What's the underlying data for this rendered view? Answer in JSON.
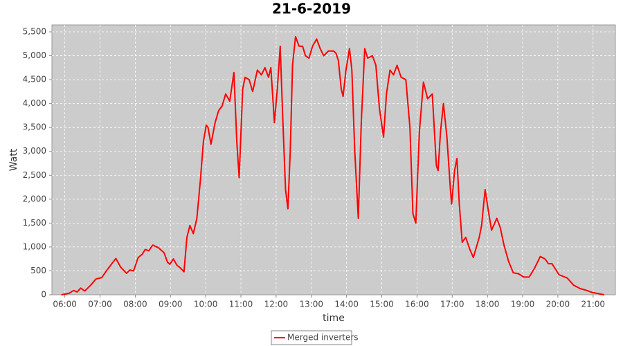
{
  "chart_data": {
    "type": "line",
    "title": "21-6-2019",
    "x_label": "time",
    "y_label": "Watt",
    "x": [
      "05:54",
      "06:07",
      "06:15",
      "06:21",
      "06:27",
      "06:34",
      "06:44",
      "06:53",
      "07:03",
      "07:12",
      "07:20",
      "07:27",
      "07:35",
      "07:45",
      "07:51",
      "07:57",
      "08:05",
      "08:12",
      "08:17",
      "08:23",
      "08:30",
      "08:40",
      "08:49",
      "08:55",
      "08:59",
      "09:05",
      "09:11",
      "09:17",
      "09:23",
      "09:28",
      "09:33",
      "09:39",
      "09:45",
      "09:51",
      "09:56",
      "10:01",
      "10:04",
      "10:09",
      "10:16",
      "10:22",
      "10:28",
      "10:34",
      "10:41",
      "10:48",
      "10:53",
      "10:57",
      "11:03",
      "11:07",
      "11:14",
      "11:20",
      "11:28",
      "11:35",
      "11:41",
      "11:47",
      "11:51",
      "11:57",
      "12:02",
      "12:07",
      "12:11",
      "12:16",
      "12:20",
      "12:24",
      "12:28",
      "12:33",
      "12:39",
      "12:45",
      "12:50",
      "12:56",
      "13:02",
      "13:09",
      "13:15",
      "13:21",
      "13:29",
      "13:38",
      "13:42",
      "13:46",
      "13:51",
      "13:54",
      "13:59",
      "14:05",
      "14:09",
      "14:14",
      "14:20",
      "14:25",
      "14:31",
      "14:36",
      "14:44",
      "14:50",
      "14:56",
      "15:03",
      "15:08",
      "15:14",
      "15:20",
      "15:26",
      "15:33",
      "15:41",
      "15:48",
      "15:53",
      "15:58",
      "16:04",
      "16:11",
      "16:18",
      "16:26",
      "16:33",
      "16:36",
      "16:40",
      "16:45",
      "16:51",
      "16:57",
      "16:59",
      "17:04",
      "17:08",
      "17:12",
      "17:17",
      "17:23",
      "17:30",
      "17:36",
      "17:46",
      "17:50",
      "17:56",
      "18:01",
      "18:07",
      "18:16",
      "18:22",
      "18:28",
      "18:36",
      "18:44",
      "18:53",
      "19:02",
      "19:11",
      "19:20",
      "19:30",
      "19:38",
      "19:44",
      "19:50",
      "20:02",
      "20:16",
      "20:27",
      "20:38",
      "20:47",
      "20:58",
      "21:11",
      "21:19"
    ],
    "series": [
      {
        "name": "Merged inverters",
        "color": "#ff0000",
        "values": [
          0,
          30,
          90,
          60,
          140,
          80,
          200,
          330,
          360,
          520,
          650,
          760,
          580,
          450,
          520,
          500,
          780,
          850,
          950,
          920,
          1040,
          980,
          880,
          680,
          640,
          750,
          620,
          560,
          480,
          1200,
          1450,
          1280,
          1600,
          2400,
          3200,
          3550,
          3500,
          3150,
          3600,
          3850,
          3950,
          4200,
          4050,
          4650,
          3200,
          2450,
          4300,
          4550,
          4500,
          4250,
          4700,
          4600,
          4750,
          4550,
          4750,
          3600,
          4300,
          5200,
          3800,
          2200,
          1800,
          3000,
          4800,
          5400,
          5200,
          5200,
          5000,
          4950,
          5200,
          5350,
          5150,
          5000,
          5100,
          5100,
          5050,
          4900,
          4300,
          4150,
          4700,
          5150,
          4700,
          3000,
          1600,
          3600,
          5150,
          4950,
          5000,
          4800,
          3900,
          3300,
          4200,
          4700,
          4600,
          4800,
          4550,
          4500,
          3500,
          1700,
          1500,
          3400,
          4450,
          4100,
          4200,
          2700,
          2600,
          3400,
          4000,
          3300,
          2200,
          1900,
          2600,
          2850,
          1900,
          1100,
          1200,
          950,
          780,
          1200,
          1450,
          2200,
          1800,
          1350,
          1600,
          1400,
          1050,
          700,
          460,
          440,
          370,
          370,
          550,
          800,
          750,
          650,
          650,
          420,
          350,
          200,
          130,
          100,
          50,
          20,
          0
        ]
      }
    ],
    "xlim": [
      "05:38",
      "21:38"
    ],
    "xticks": [
      "06:00",
      "07:00",
      "08:00",
      "09:00",
      "10:00",
      "11:00",
      "12:00",
      "13:00",
      "14:00",
      "15:00",
      "16:00",
      "17:00",
      "18:00",
      "19:00",
      "20:00",
      "21:00"
    ],
    "ylim": [
      0,
      5645
    ],
    "yticks": [
      0,
      500,
      {
        "value": 1000,
        "label": "1,000"
      },
      {
        "value": 1500,
        "label": "1,500"
      },
      {
        "value": 2000,
        "label": "2,000"
      },
      {
        "value": 2500,
        "label": "2,500"
      },
      {
        "value": 3000,
        "label": "3,000"
      },
      {
        "value": 3500,
        "label": "3,500"
      },
      {
        "value": 4000,
        "label": "4,000"
      },
      {
        "value": 4500,
        "label": "4,500"
      },
      {
        "value": 5000,
        "label": "5,000"
      },
      {
        "value": 5500,
        "label": "5,500"
      }
    ],
    "grid": true,
    "legend": "bottom"
  }
}
